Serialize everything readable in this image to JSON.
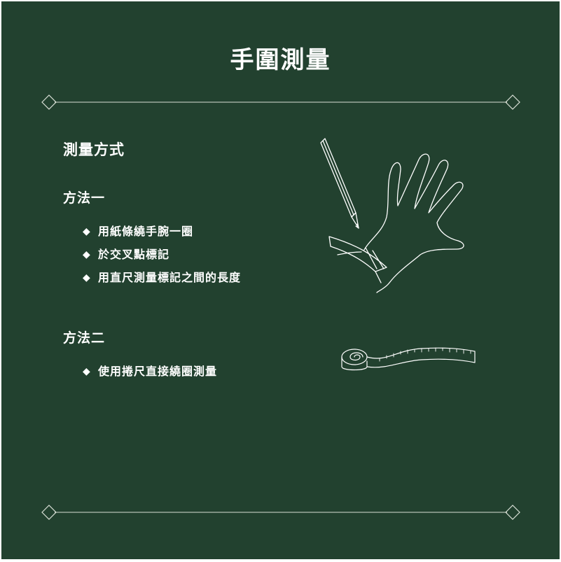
{
  "title": "手圍測量",
  "section_heading": "測量方式",
  "methods": [
    {
      "title": "方法一",
      "steps": [
        "用紙條繞手腕一圈",
        "於交叉點標記",
        "用直尺測量標記之間的長度"
      ]
    },
    {
      "title": "方法二",
      "steps": [
        "使用捲尺直接繞圈測量"
      ]
    }
  ],
  "bullet_glyph": "◆",
  "colors": {
    "background": "#22412f",
    "foreground": "#ffffff",
    "line": "#d9e0d6"
  },
  "icons": [
    "diamond-ornament-icon",
    "hand-with-pencil-illustration",
    "measuring-tape-illustration"
  ]
}
